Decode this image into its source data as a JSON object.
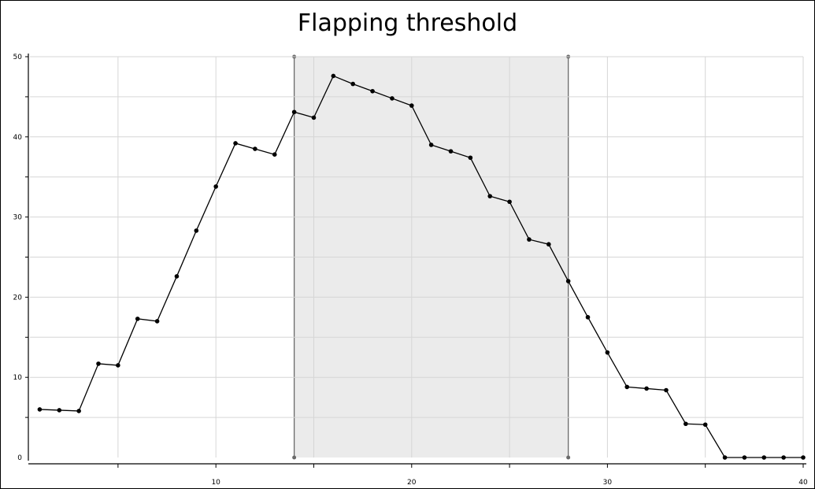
{
  "chart_data": {
    "type": "line",
    "title": "Flapping threshold",
    "xlabel": "",
    "ylabel": "",
    "xlim": [
      0.5,
      40
    ],
    "ylim": [
      0,
      50
    ],
    "x_ticks": [
      10,
      20,
      30,
      40
    ],
    "y_ticks": [
      0,
      10,
      20,
      30,
      40,
      50
    ],
    "x_grid": [
      5,
      10,
      15,
      20,
      25,
      30,
      35,
      40
    ],
    "y_grid": [
      5,
      10,
      15,
      20,
      25,
      30,
      35,
      40,
      45,
      50
    ],
    "grid": true,
    "legend": "none",
    "shaded_region": {
      "x_start": 14,
      "x_end": 28,
      "color": "#ebebeb"
    },
    "series": [
      {
        "color": "#000000",
        "x": [
          1,
          2,
          3,
          4,
          5,
          6,
          7,
          8,
          9,
          10,
          11,
          12,
          13,
          14,
          15,
          16,
          17,
          18,
          19,
          20,
          21,
          22,
          23,
          24,
          25,
          26,
          27,
          28,
          29,
          30,
          31,
          32,
          33,
          34,
          35,
          36,
          37,
          38,
          39,
          40
        ],
        "y": [
          6,
          5.9,
          5.8,
          11.7,
          11.5,
          17.3,
          17,
          22.6,
          28.3,
          33.8,
          39.2,
          38.5,
          37.8,
          43.1,
          42.4,
          47.6,
          46.6,
          45.7,
          44.8,
          43.9,
          39,
          38.2,
          37.4,
          32.6,
          31.9,
          27.2,
          26.6,
          22,
          17.5,
          13.1,
          8.8,
          8.6,
          8.4,
          4.2,
          4.1,
          0,
          0,
          0,
          0,
          0
        ]
      }
    ]
  }
}
